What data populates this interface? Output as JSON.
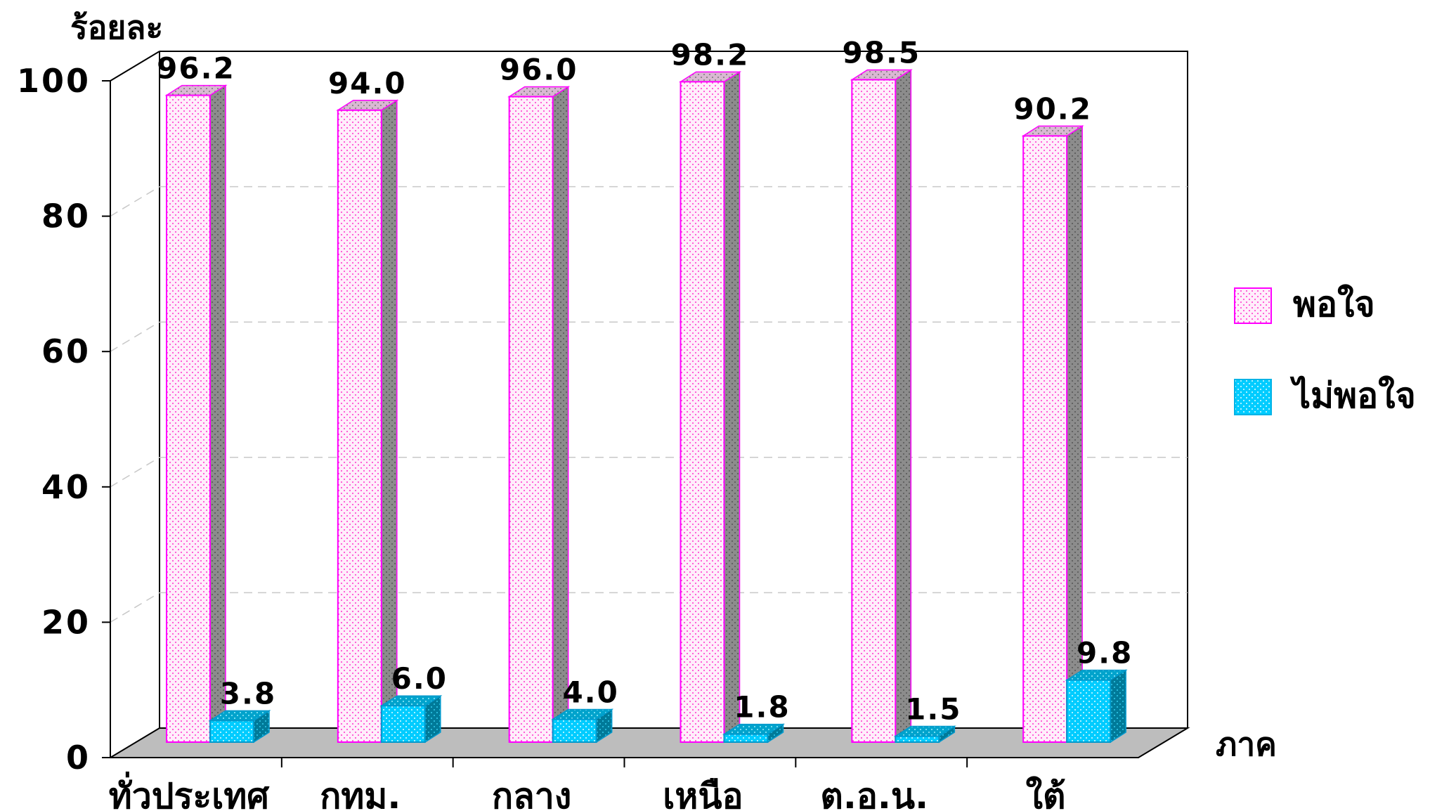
{
  "chart_data": {
    "type": "bar",
    "ylabel": "ร้อยละ",
    "xlabel": "ภาค",
    "ylim": [
      0,
      100
    ],
    "yticks": [
      "0",
      "20",
      "40",
      "60",
      "80",
      "100"
    ],
    "categories": [
      "ทั่วประเทศ",
      "กทม.",
      "กลาง",
      "เหนือ",
      "ต.อ.น.",
      "ใต้"
    ],
    "series": [
      {
        "name": "พอใจ",
        "values": [
          96.2,
          94.0,
          96.0,
          98.2,
          98.5,
          90.2
        ],
        "labels": [
          "96.2",
          "94.0",
          "96.0",
          "98.2",
          "98.5",
          "90.2"
        ],
        "color": "#ffe6fa",
        "edge": "#ff00ff"
      },
      {
        "name": "ไม่พอใจ",
        "values": [
          3.8,
          6.0,
          4.0,
          1.8,
          1.5,
          9.8
        ],
        "labels": [
          "3.8",
          "6.0",
          "4.0",
          "1.8",
          "1.5",
          "9.8"
        ],
        "color": "#00ccff",
        "edge": "#0099cc"
      }
    ],
    "grid": true,
    "legend": "right"
  }
}
